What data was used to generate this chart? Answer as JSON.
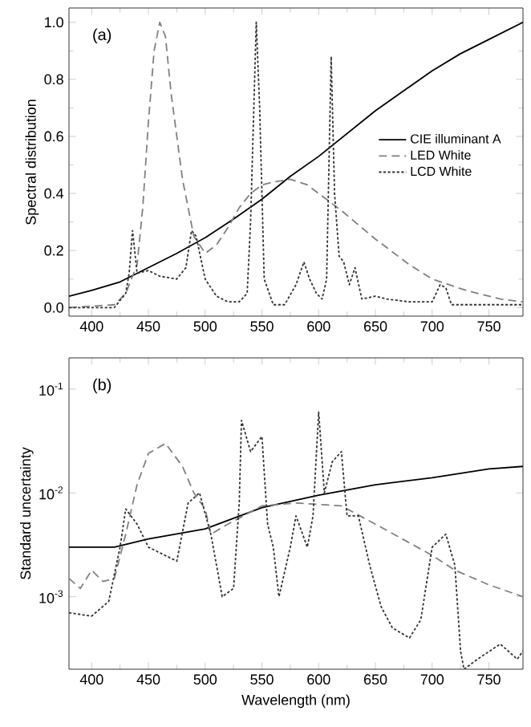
{
  "chart_data": [
    {
      "type": "line",
      "ylabel": "Spectral distribution",
      "annotations": [
        "(a)"
      ],
      "legend": "right",
      "grid": false,
      "marker": "none",
      "xlim": [
        380,
        780
      ],
      "xticks": [
        400,
        450,
        500,
        550,
        600,
        650,
        700,
        750
      ],
      "ylim": [
        -0.03,
        1.05
      ],
      "yticks": [
        {
          "value": 0,
          "label": "0.0"
        },
        {
          "value": 0.2,
          "label": "0.2"
        },
        {
          "value": 0.4,
          "label": "0.4"
        },
        {
          "value": 0.6,
          "label": "0.6"
        },
        {
          "value": 0.8,
          "label": "0.8"
        },
        {
          "value": 1.0,
          "label": "1.0"
        }
      ],
      "series": [
        {
          "name": "CIE illuminant A",
          "color": "#000000",
          "line_style": "solid",
          "x": [
            380,
            400,
            425,
            450,
            475,
            500,
            525,
            550,
            575,
            600,
            625,
            650,
            675,
            700,
            725,
            750,
            765,
            780
          ],
          "values": [
            0.04,
            0.06,
            0.09,
            0.14,
            0.19,
            0.245,
            0.31,
            0.38,
            0.46,
            0.53,
            0.61,
            0.69,
            0.76,
            0.83,
            0.89,
            0.94,
            0.97,
            1.0
          ]
        },
        {
          "name": "LED White",
          "color": "#808080",
          "line_style": "dashed",
          "x": [
            380,
            420,
            430,
            440,
            445,
            450,
            455,
            460,
            465,
            470,
            480,
            490,
            500,
            510,
            520,
            530,
            540,
            550,
            560,
            575,
            590,
            600,
            620,
            650,
            680,
            700,
            730,
            760,
            780
          ],
          "values": [
            0,
            0.01,
            0.05,
            0.15,
            0.35,
            0.65,
            0.9,
            1.0,
            0.95,
            0.75,
            0.45,
            0.25,
            0.19,
            0.22,
            0.28,
            0.35,
            0.4,
            0.43,
            0.44,
            0.45,
            0.43,
            0.4,
            0.34,
            0.24,
            0.15,
            0.1,
            0.06,
            0.03,
            0.02
          ]
        },
        {
          "name": "LCD White",
          "color": "#333333",
          "line_style": "dotted",
          "x": [
            380,
            420,
            430,
            433,
            436,
            440,
            450,
            460,
            475,
            483,
            488,
            492,
            500,
            510,
            520,
            530,
            537,
            540,
            545,
            548,
            552,
            560,
            570,
            580,
            587,
            592,
            598,
            603,
            607,
            611,
            614,
            618,
            622,
            627,
            632,
            638,
            650,
            660,
            680,
            700,
            707,
            712,
            717,
            740,
            780
          ],
          "values": [
            0,
            0,
            0.05,
            0.12,
            0.27,
            0.12,
            0.13,
            0.11,
            0.1,
            0.14,
            0.27,
            0.25,
            0.1,
            0.04,
            0.02,
            0.02,
            0.05,
            0.3,
            1.0,
            0.7,
            0.1,
            0.01,
            0.01,
            0.08,
            0.16,
            0.1,
            0.05,
            0.03,
            0.1,
            0.88,
            0.4,
            0.18,
            0.16,
            0.08,
            0.14,
            0.03,
            0.04,
            0.03,
            0.02,
            0.02,
            0.08,
            0.07,
            0.01,
            0.01,
            0.01
          ]
        }
      ]
    },
    {
      "type": "line",
      "xlabel": "Wavelength (nm)",
      "ylabel": "Standard uncertainty",
      "annotations": [
        "(b)"
      ],
      "log": "y",
      "grid": false,
      "marker": "none",
      "xlim": [
        380,
        780
      ],
      "xticks": [
        400,
        450,
        500,
        550,
        600,
        650,
        700,
        750
      ],
      "ylim": [
        0.0002,
        0.2
      ],
      "yticks": [
        {
          "value": 0.001,
          "label": "10$^{-3}$"
        },
        {
          "value": 0.01,
          "label": "10$^{-2}$"
        },
        {
          "value": 0.1,
          "label": "10$^{-1}$"
        }
      ],
      "series": [
        {
          "color": "#000000",
          "line_style": "solid",
          "x": [
            380,
            420,
            450,
            500,
            550,
            600,
            650,
            700,
            750,
            780
          ],
          "values": [
            0.003,
            0.003,
            0.0036,
            0.0045,
            0.0072,
            0.0095,
            0.012,
            0.014,
            0.017,
            0.018
          ]
        },
        {
          "color": "#808080",
          "line_style": "dashed",
          "x": [
            380,
            390,
            400,
            410,
            420,
            430,
            440,
            450,
            465,
            480,
            490,
            500,
            505,
            520,
            550,
            580,
            620,
            650,
            700,
            720,
            750,
            780
          ],
          "values": [
            0.0015,
            0.0012,
            0.0018,
            0.0014,
            0.0015,
            0.004,
            0.012,
            0.024,
            0.03,
            0.018,
            0.01,
            0.007,
            0.004,
            0.005,
            0.0075,
            0.008,
            0.0075,
            0.005,
            0.0025,
            0.0018,
            0.0013,
            0.001
          ]
        },
        {
          "color": "#333333",
          "line_style": "dotted",
          "x": [
            380,
            400,
            415,
            425,
            430,
            440,
            450,
            475,
            485,
            495,
            505,
            515,
            525,
            530,
            532,
            540,
            550,
            555,
            560,
            565,
            575,
            580,
            590,
            595,
            600,
            605,
            612,
            620,
            625,
            635,
            645,
            655,
            665,
            680,
            690,
            700,
            712,
            720,
            725,
            728,
            740,
            760,
            775,
            780
          ],
          "values": [
            0.0007,
            0.00065,
            0.0009,
            0.003,
            0.007,
            0.005,
            0.003,
            0.0022,
            0.008,
            0.01,
            0.004,
            0.001,
            0.0012,
            0.008,
            0.05,
            0.025,
            0.035,
            0.005,
            0.003,
            0.001,
            0.003,
            0.006,
            0.003,
            0.006,
            0.06,
            0.01,
            0.02,
            0.025,
            0.006,
            0.006,
            0.002,
            0.0008,
            0.0005,
            0.0004,
            0.0006,
            0.003,
            0.004,
            0.002,
            0.0003,
            0.0002,
            0.00025,
            0.00035,
            0.00025,
            0.0003
          ]
        }
      ]
    }
  ]
}
